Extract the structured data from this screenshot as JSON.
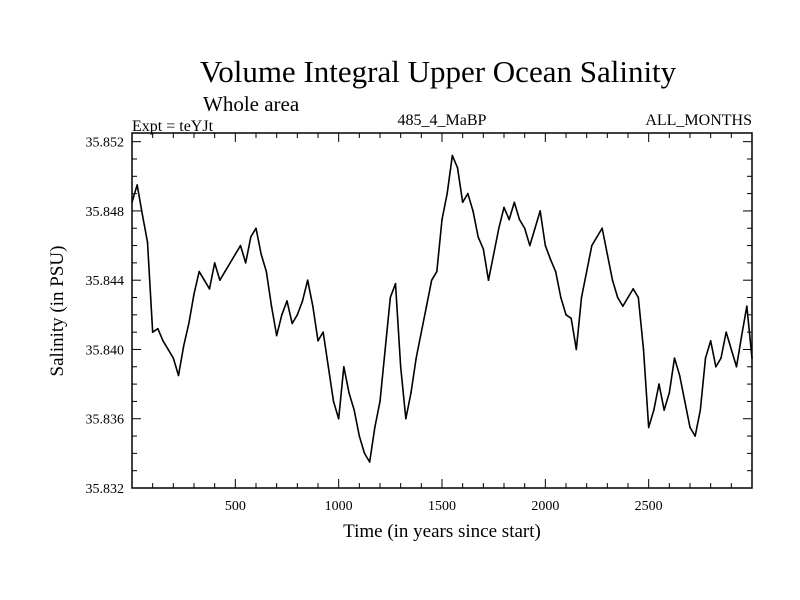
{
  "chart_data": {
    "type": "line",
    "title": "Volume Integral Upper Ocean Salinity",
    "subtitle": "Whole area",
    "experiment_label": "Expt = teYJt",
    "run_label": "485_4_MaBP",
    "months_label": "ALL_MONTHS",
    "xlabel": "Time (in years since start)",
    "ylabel": "Salinity (in PSU)",
    "xlim": [
      0,
      3000
    ],
    "ylim": [
      35.832,
      35.8525
    ],
    "x_ticks": [
      500,
      1000,
      1500,
      2000,
      2500
    ],
    "y_ticks": [
      "35.832",
      "35.836",
      "35.840",
      "35.844",
      "35.848",
      "35.852"
    ],
    "series": [
      {
        "name": "salinity",
        "color": "#000000",
        "x": [
          0,
          25,
          50,
          75,
          100,
          125,
          150,
          175,
          200,
          225,
          250,
          275,
          300,
          325,
          350,
          375,
          400,
          425,
          450,
          475,
          500,
          525,
          550,
          575,
          600,
          625,
          650,
          675,
          700,
          725,
          750,
          775,
          800,
          825,
          850,
          875,
          900,
          925,
          950,
          975,
          1000,
          1025,
          1050,
          1075,
          1100,
          1125,
          1150,
          1175,
          1200,
          1225,
          1250,
          1275,
          1300,
          1325,
          1350,
          1375,
          1400,
          1425,
          1450,
          1475,
          1500,
          1525,
          1550,
          1575,
          1600,
          1625,
          1650,
          1675,
          1700,
          1725,
          1750,
          1775,
          1800,
          1825,
          1850,
          1875,
          1900,
          1925,
          1950,
          1975,
          2000,
          2025,
          2050,
          2075,
          2100,
          2125,
          2150,
          2175,
          2200,
          2225,
          2250,
          2275,
          2300,
          2325,
          2350,
          2375,
          2400,
          2425,
          2450,
          2475,
          2500,
          2525,
          2550,
          2575,
          2600,
          2625,
          2650,
          2675,
          2700,
          2725,
          2750,
          2775,
          2800,
          2825,
          2850,
          2875,
          2900,
          2925,
          2950,
          2975,
          3000
        ],
        "values": [
          35.8485,
          35.8495,
          35.8478,
          35.8462,
          35.841,
          35.8412,
          35.8405,
          35.84,
          35.8395,
          35.8385,
          35.8402,
          35.8415,
          35.8432,
          35.8445,
          35.844,
          35.8435,
          35.845,
          35.844,
          35.8445,
          35.845,
          35.8455,
          35.846,
          35.845,
          35.8465,
          35.847,
          35.8455,
          35.8445,
          35.8425,
          35.8408,
          35.842,
          35.8428,
          35.8415,
          35.842,
          35.8428,
          35.844,
          35.8425,
          35.8405,
          35.841,
          35.839,
          35.837,
          35.836,
          35.839,
          35.8375,
          35.8365,
          35.835,
          35.834,
          35.8335,
          35.8355,
          35.837,
          35.84,
          35.843,
          35.8438,
          35.839,
          35.836,
          35.8375,
          35.8395,
          35.841,
          35.8425,
          35.844,
          35.8445,
          35.8475,
          35.849,
          35.8512,
          35.8505,
          35.8485,
          35.849,
          35.848,
          35.8465,
          35.8458,
          35.844,
          35.8455,
          35.847,
          35.8482,
          35.8475,
          35.8485,
          35.8475,
          35.847,
          35.846,
          35.847,
          35.848,
          35.846,
          35.8452,
          35.8445,
          35.843,
          35.842,
          35.8418,
          35.84,
          35.843,
          35.8445,
          35.846,
          35.8465,
          35.847,
          35.8455,
          35.844,
          35.843,
          35.8425,
          35.843,
          35.8435,
          35.843,
          35.84,
          35.8355,
          35.8365,
          35.838,
          35.8365,
          35.8375,
          35.8395,
          35.8385,
          35.837,
          35.8355,
          35.835,
          35.8365,
          35.8395,
          35.8405,
          35.839,
          35.8395,
          35.841,
          35.84,
          35.839,
          35.8408,
          35.8425,
          35.8395
        ]
      }
    ]
  }
}
